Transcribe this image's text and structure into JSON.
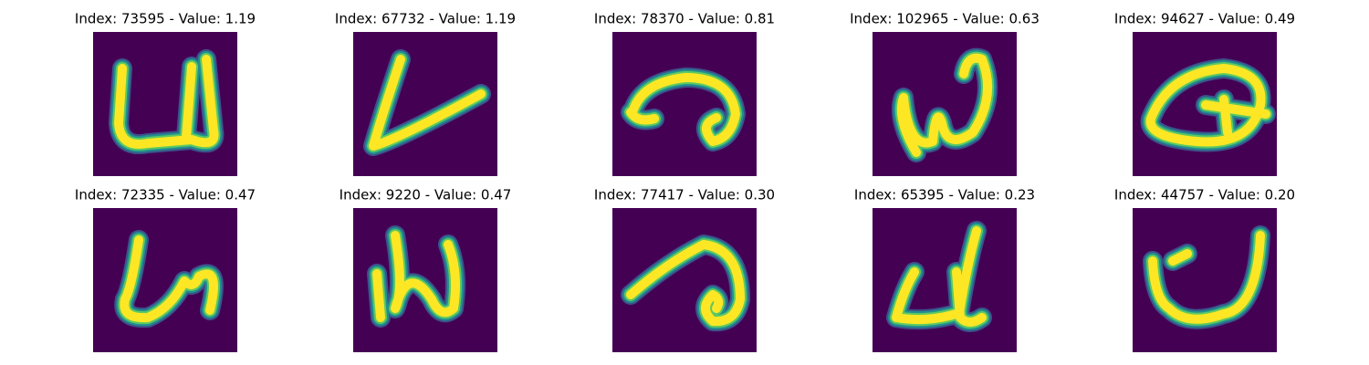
{
  "panels": [
    {
      "title": "Index: 73595 - Value: 1.19"
    },
    {
      "title": "Index: 67732 - Value: 1.19"
    },
    {
      "title": "Index: 78370 - Value: 0.81"
    },
    {
      "title": "Index: 102965 - Value: 0.63"
    },
    {
      "title": "Index: 94627 - Value: 0.49"
    },
    {
      "title": "Index: 72335 - Value: 0.47"
    },
    {
      "title": "Index: 9220 - Value: 0.47"
    },
    {
      "title": "Index: 77417 - Value: 0.30"
    },
    {
      "title": "Index: 65395 - Value: 0.23"
    },
    {
      "title": "Index: 44757 - Value: 0.20"
    }
  ]
}
